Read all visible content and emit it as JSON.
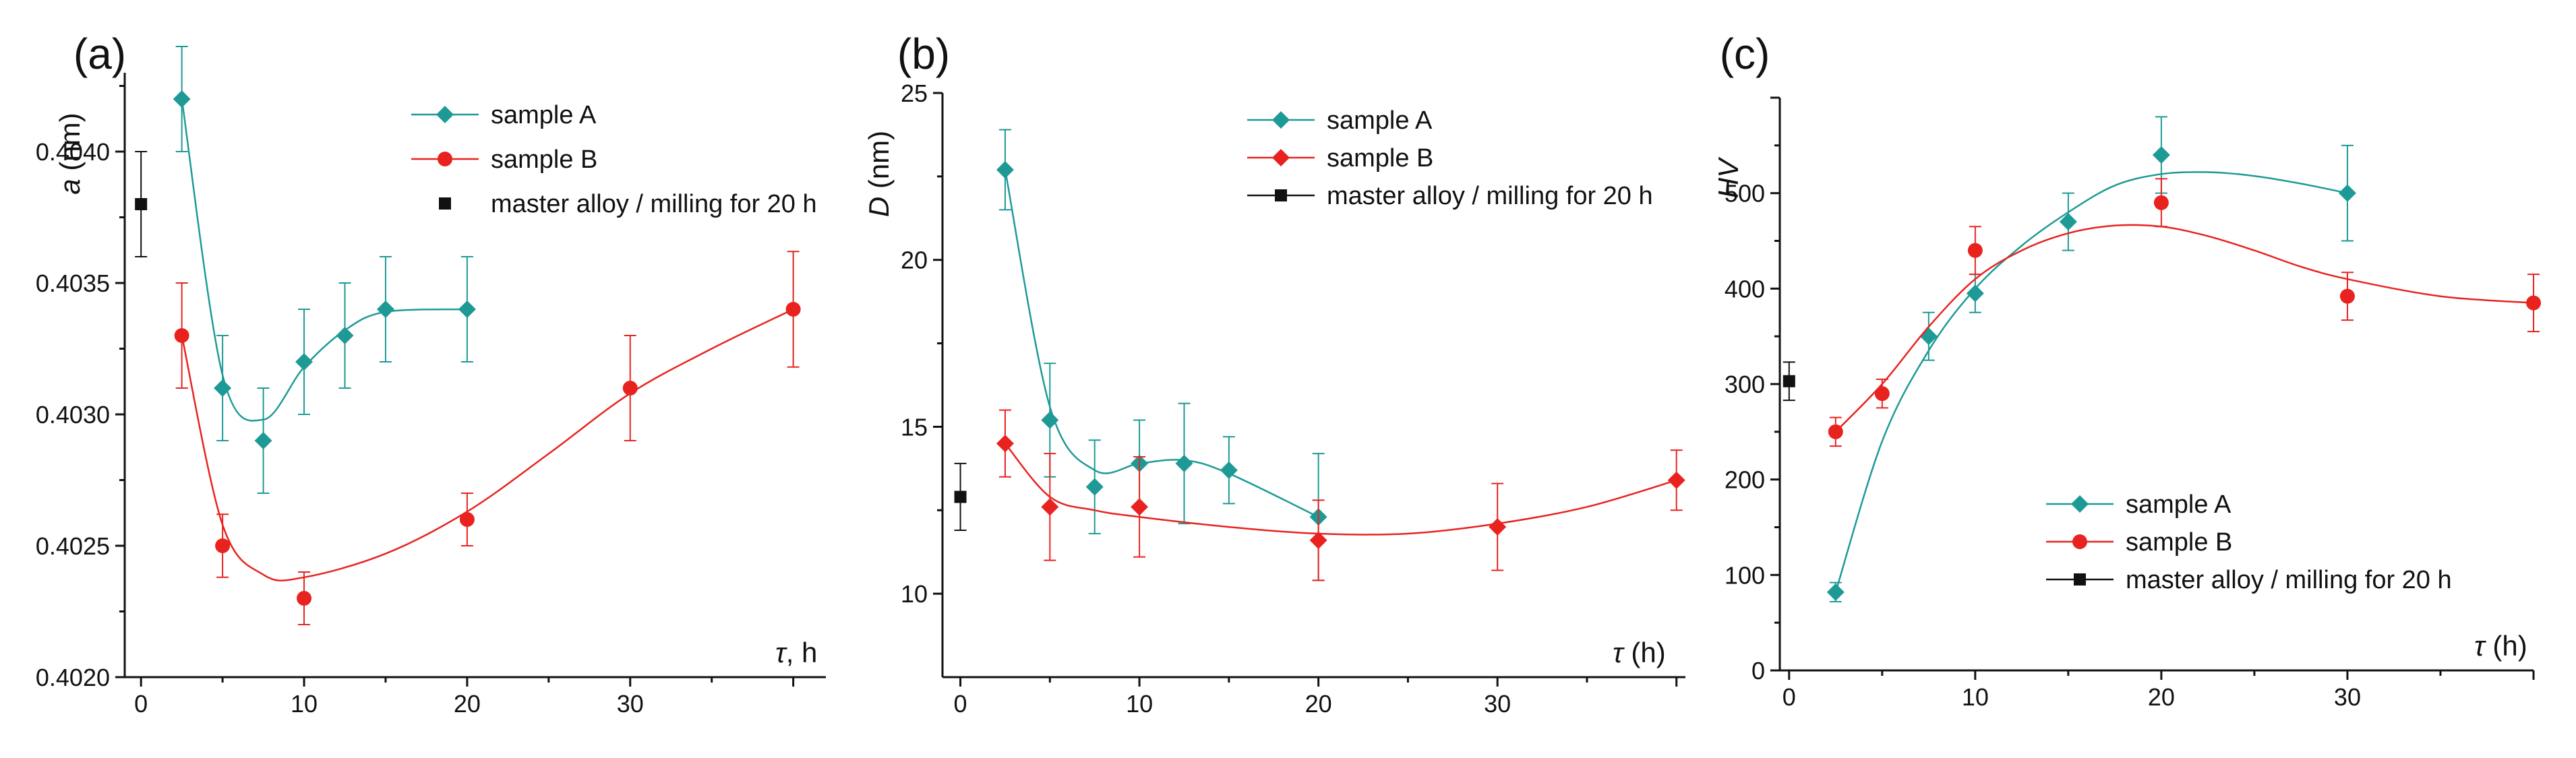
{
  "colors": {
    "sample_a": "#1e9a96",
    "sample_b": "#e8231f",
    "master": "#111111",
    "axis": "#111111"
  },
  "chart_data": [
    {
      "type": "scatter",
      "panel_label": "(a)",
      "ylabel_italic": "a",
      "ylabel_rest": " (nm)",
      "xlabel_italic": "τ",
      "xlabel_rest": ", h",
      "xlim": [
        -1,
        42
      ],
      "ylim": [
        0.402,
        0.4043
      ],
      "x_ticks": [
        0,
        10,
        20,
        30
      ],
      "y_ticks": [
        0.402,
        0.4025,
        0.403,
        0.4035,
        0.404
      ],
      "y_tick_labels": [
        "0.4020",
        "0.4025",
        "0.4030",
        "0.4035",
        "0.4040"
      ],
      "legend_position": "top-right",
      "series": [
        {
          "name": "sample A",
          "marker": "diamond",
          "color_key": "sample_a",
          "x": [
            2.5,
            5,
            7.5,
            10,
            12.5,
            15,
            20
          ],
          "y": [
            0.4042,
            0.4031,
            0.4029,
            0.4032,
            0.4033,
            0.4034,
            0.4034
          ],
          "yerr": [
            0.0002,
            0.0002,
            0.0002,
            0.0002,
            0.0002,
            0.0002,
            0.0002
          ],
          "fit_x": [
            2.5,
            5,
            7.5,
            10,
            12.5,
            15,
            20
          ],
          "fit_y": [
            0.4042,
            0.40315,
            0.40298,
            0.40318,
            0.40332,
            0.40339,
            0.4034
          ]
        },
        {
          "name": "sample B",
          "marker": "circle",
          "color_key": "sample_b",
          "x": [
            2.5,
            5,
            10,
            20,
            30,
            40
          ],
          "y": [
            0.4033,
            0.4025,
            0.4023,
            0.4026,
            0.4031,
            0.4034
          ],
          "yerr": [
            0.0002,
            0.00012,
            0.0001,
            0.0001,
            0.0002,
            0.00022
          ],
          "fit_x": [
            2.5,
            5,
            7.5,
            10,
            15,
            20,
            25,
            30,
            35,
            40
          ],
          "fit_y": [
            0.4033,
            0.40258,
            0.40239,
            0.40238,
            0.40247,
            0.40263,
            0.40285,
            0.40308,
            0.40325,
            0.4034
          ]
        },
        {
          "name": "master alloy / milling for 20 h",
          "marker": "square",
          "color_key": "master",
          "x": [
            0
          ],
          "y": [
            0.4038
          ],
          "yerr": [
            0.0002
          ]
        }
      ]
    },
    {
      "type": "scatter",
      "panel_label": "(b)",
      "ylabel_italic": "D",
      "ylabel_rest": " (nm)",
      "xlabel_italic": "τ",
      "xlabel_rest": " (h)",
      "xlim": [
        -1,
        40.5
      ],
      "ylim": [
        7.5,
        25
      ],
      "x_ticks": [
        0,
        10,
        20,
        30
      ],
      "y_ticks": [
        10,
        15,
        20,
        25
      ],
      "y_tick_labels": [
        "10",
        "15",
        "20",
        "25"
      ],
      "legend_position": "top-right",
      "series": [
        {
          "name": "sample A",
          "marker": "diamond",
          "color_key": "sample_a",
          "x": [
            2.5,
            5,
            7.5,
            10,
            12.5,
            15,
            20
          ],
          "y": [
            22.7,
            15.2,
            13.2,
            13.9,
            13.9,
            13.7,
            12.3
          ],
          "yerr": [
            1.2,
            1.7,
            1.4,
            1.3,
            1.8,
            1.0,
            1.9
          ],
          "fit_x": [
            2.5,
            5,
            7.5,
            10,
            12.5,
            15,
            20
          ],
          "fit_y": [
            22.7,
            15.6,
            13.7,
            13.9,
            14.0,
            13.6,
            12.3
          ]
        },
        {
          "name": "sample B",
          "marker": "diamond",
          "color_key": "sample_b",
          "x": [
            2.5,
            5,
            10,
            20,
            30,
            40
          ],
          "y": [
            14.5,
            12.6,
            12.6,
            11.6,
            12.0,
            13.4
          ],
          "yerr": [
            1.0,
            1.6,
            1.5,
            1.2,
            1.3,
            0.9
          ],
          "fit_x": [
            2.5,
            5,
            7.5,
            10,
            15,
            20,
            25,
            30,
            35,
            40
          ],
          "fit_y": [
            14.5,
            12.9,
            12.5,
            12.3,
            12.0,
            11.8,
            11.8,
            12.1,
            12.6,
            13.4
          ]
        },
        {
          "name": "master alloy / milling for 20 h",
          "marker": "square",
          "color_key": "master",
          "x": [
            0
          ],
          "y": [
            12.9
          ],
          "yerr": [
            1.0
          ]
        }
      ]
    },
    {
      "type": "scatter",
      "panel_label": "(c)",
      "ylabel_italic": "HV",
      "ylabel_rest": "",
      "xlabel_italic": "τ",
      "xlabel_rest": " (h)",
      "xlim": [
        -0.5,
        40
      ],
      "ylim": [
        0,
        600
      ],
      "x_ticks": [
        0,
        10,
        20,
        30
      ],
      "y_ticks": [
        0,
        100,
        200,
        300,
        400,
        500
      ],
      "y_tick_labels": [
        "0",
        "100",
        "200",
        "300",
        "400",
        "500"
      ],
      "legend_position": "bottom-center",
      "series": [
        {
          "name": "sample A",
          "marker": "diamond",
          "color_key": "sample_a",
          "x": [
            2.5,
            7.5,
            10,
            15,
            20,
            30
          ],
          "y": [
            82,
            350,
            395,
            470,
            540,
            500
          ],
          "yerr": [
            10,
            25,
            20,
            30,
            40,
            50
          ],
          "fit_x": [
            2.5,
            5,
            7.5,
            10,
            12.5,
            15,
            17.5,
            20,
            22.5,
            25,
            27.5,
            30
          ],
          "fit_y": [
            82,
            240,
            335,
            400,
            445,
            480,
            508,
            520,
            522,
            518,
            510,
            500
          ]
        },
        {
          "name": "sample B",
          "marker": "circle",
          "color_key": "sample_b",
          "x": [
            2.5,
            5,
            10,
            20,
            30,
            40
          ],
          "y": [
            250,
            290,
            440,
            490,
            392,
            385
          ],
          "yerr": [
            15,
            15,
            25,
            25,
            25,
            30
          ],
          "fit_x": [
            2.5,
            5,
            7.5,
            10,
            12.5,
            15,
            17.5,
            20,
            22.5,
            25,
            27.5,
            30,
            35,
            40
          ],
          "fit_y": [
            250,
            300,
            360,
            410,
            440,
            458,
            466,
            465,
            455,
            440,
            423,
            410,
            392,
            385
          ]
        },
        {
          "name": "master alloy / milling for 20 h",
          "marker": "square",
          "color_key": "master",
          "x": [
            0
          ],
          "y": [
            303
          ],
          "yerr": [
            20
          ]
        }
      ]
    }
  ]
}
